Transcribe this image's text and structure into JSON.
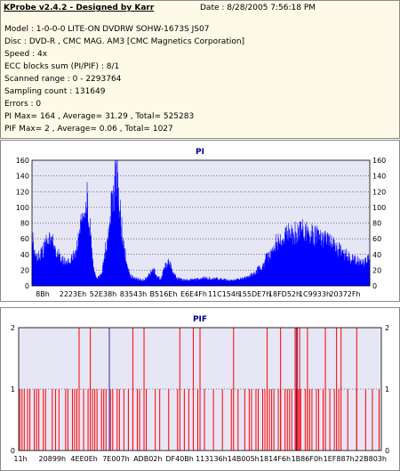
{
  "info": {
    "header": "KProbe v2.4.2 - Designed by Karr",
    "date": "Date : 8/28/2005 7:56:18 PM",
    "lines": [
      "Model : 1-0-0-0 LITE-ON DVDRW SOHW-1673S JS07",
      "Disc : DVD-R , CMC MAG. AM3 [CMC Magnetics Corporation]",
      "Speed : 4x",
      "ECC blocks sum (PI/PIF) : 8/1",
      "Scanned range : 0 - 2293764",
      "Sampling count : 131649",
      "Errors : 0",
      "PI Max= 164 , Average= 31.29 , Total= 525283",
      "PIF Max= 2 , Average= 0.06 , Total= 1027"
    ]
  },
  "colors": {
    "pi_fill": "#0000ff",
    "pif_bar": "#ff0000",
    "plot_bg": "#e6e6f5",
    "accent_title": "#00008b",
    "grid": "#000000"
  },
  "chart_data": [
    {
      "type": "area",
      "title": "PI",
      "ylim": [
        0,
        160
      ],
      "y_ticks": [
        "0",
        "20",
        "40",
        "60",
        "80",
        "100",
        "120",
        "140",
        "160"
      ],
      "x_tick_labels": [
        "8Bh",
        "2223Eh",
        "52E38h",
        "83543h",
        "B516Eh",
        "E6E4Fh",
        "11C154h",
        "155DE7h",
        "18FD52h",
        "1C9933h",
        "20372Fh"
      ],
      "grid": "dotted horizontal",
      "envelope": [
        [
          0,
          70
        ],
        [
          1,
          50
        ],
        [
          3,
          40
        ],
        [
          5,
          45
        ],
        [
          7,
          60
        ],
        [
          9,
          65
        ],
        [
          11,
          55
        ],
        [
          13,
          40
        ],
        [
          15,
          33
        ],
        [
          17,
          30
        ],
        [
          19,
          36
        ],
        [
          21,
          48
        ],
        [
          23,
          75
        ],
        [
          25,
          115
        ],
        [
          26.5,
          125
        ],
        [
          28,
          75
        ],
        [
          29,
          35
        ],
        [
          30,
          20
        ],
        [
          31,
          12
        ],
        [
          33,
          14
        ],
        [
          34,
          28
        ],
        [
          36,
          65
        ],
        [
          38,
          108
        ],
        [
          39.5,
          132
        ],
        [
          40.5,
          162
        ],
        [
          41.5,
          125
        ],
        [
          43,
          80
        ],
        [
          44.5,
          48
        ],
        [
          46,
          22
        ],
        [
          48,
          12
        ],
        [
          51,
          9
        ],
        [
          53,
          8
        ],
        [
          55,
          10
        ],
        [
          57,
          18
        ],
        [
          58.5,
          22
        ],
        [
          60,
          12
        ],
        [
          62,
          10
        ],
        [
          63.5,
          24
        ],
        [
          65,
          33
        ],
        [
          66.5,
          27
        ],
        [
          68,
          16
        ],
        [
          70,
          10
        ],
        [
          73,
          8
        ],
        [
          76,
          8
        ],
        [
          79,
          9
        ],
        [
          82,
          11
        ],
        [
          86,
          10
        ],
        [
          90,
          9
        ],
        [
          94,
          8
        ],
        [
          98,
          8
        ],
        [
          102,
          11
        ],
        [
          106,
          16
        ],
        [
          110,
          26
        ],
        [
          114,
          44
        ],
        [
          117,
          60
        ],
        [
          120,
          67
        ],
        [
          123,
          70
        ],
        [
          126,
          72
        ],
        [
          129,
          75
        ],
        [
          132,
          73
        ],
        [
          135,
          70
        ],
        [
          138,
          68
        ],
        [
          141,
          64
        ],
        [
          144,
          56
        ],
        [
          147,
          50
        ],
        [
          150,
          44
        ],
        [
          153,
          38
        ],
        [
          156,
          34
        ],
        [
          158,
          30
        ],
        [
          160,
          33
        ],
        [
          162,
          36
        ]
      ]
    },
    {
      "type": "bar",
      "title": "PIF",
      "ylim": [
        0,
        2
      ],
      "y_ticks": [
        "0",
        "1",
        "2"
      ],
      "x_tick_labels": [
        "11h",
        "20899h",
        "4EE0Eh",
        "7E007h",
        "ADB02h",
        "DF40Bh",
        "113136h",
        "14B005h",
        "1814F6h",
        "1B86F0h",
        "1EF887h",
        "22B803h"
      ],
      "grid": "dotted horizontal",
      "x_range": [
        0,
        162
      ],
      "ones": [
        0.5,
        1.5,
        2.5,
        4,
        5,
        7,
        8,
        9,
        11,
        12,
        15,
        16.5,
        18,
        21,
        22,
        24,
        25,
        26,
        29,
        31,
        33,
        34,
        35,
        37,
        38,
        39,
        41,
        42,
        44,
        45,
        47,
        49,
        51,
        53,
        54,
        57,
        61,
        63,
        67,
        71,
        74,
        76,
        80,
        83,
        87,
        91,
        95,
        98,
        101,
        103,
        104,
        106,
        107,
        109,
        110,
        112,
        113,
        114,
        116,
        117,
        119,
        120,
        121,
        122,
        124,
        125,
        126,
        128,
        129,
        130,
        131,
        133,
        134,
        136,
        137,
        139,
        141,
        143,
        147,
        151,
        155,
        158,
        161
      ],
      "twos": [
        27,
        32,
        51,
        56,
        72,
        78,
        81,
        96,
        111,
        117,
        123.5,
        124.5,
        125.5,
        129,
        137,
        142,
        144,
        151
      ],
      "marker_lines": [
        40.5,
        124
      ]
    }
  ]
}
